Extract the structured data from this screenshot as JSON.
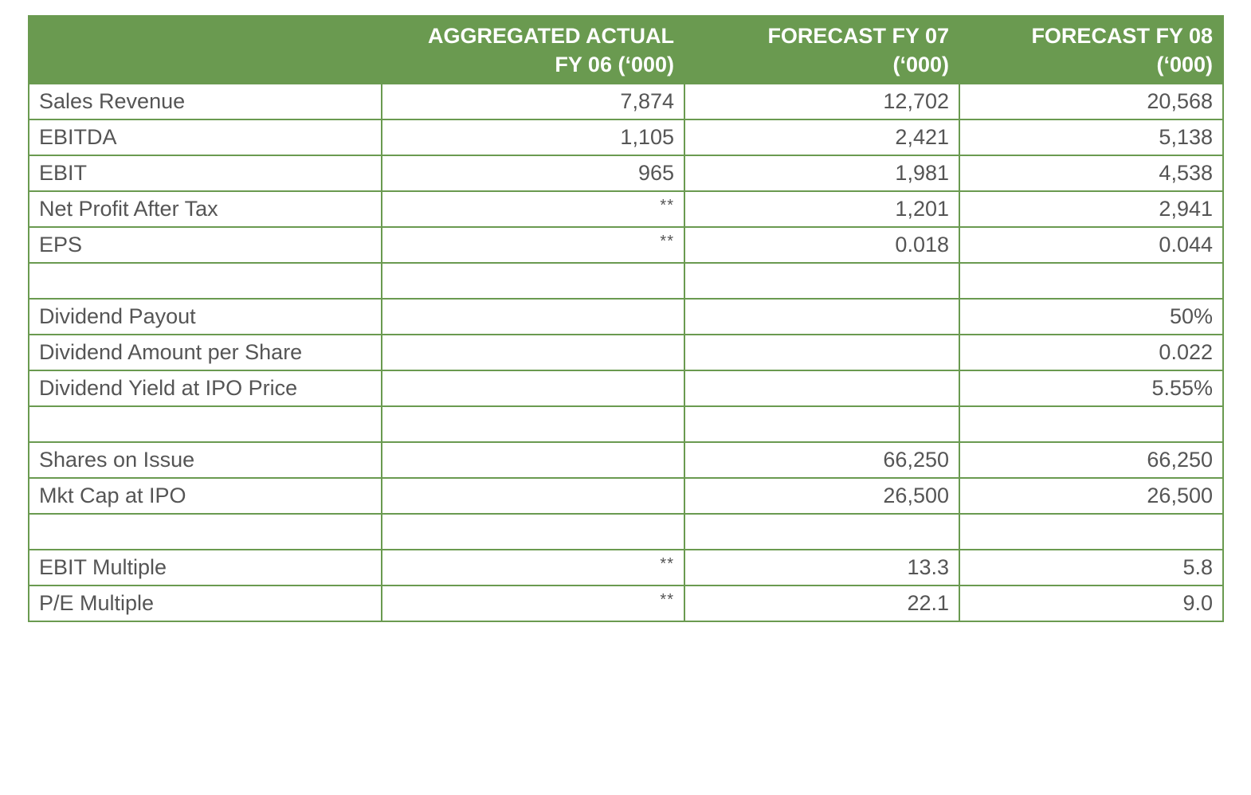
{
  "table": {
    "headers": [
      {
        "line1": "",
        "line2": ""
      },
      {
        "line1": "AGGREGATED ACTUAL",
        "line2": "FY 06 (‘000)"
      },
      {
        "line1": "FORECAST FY 07",
        "line2": "(‘000)"
      },
      {
        "line1": "FORECAST FY 08",
        "line2": "(‘000)"
      }
    ],
    "rows": [
      [
        "Sales Revenue",
        "7,874",
        "12,702",
        "20,568"
      ],
      [
        "EBITDA",
        "1,105",
        "2,421",
        "5,138"
      ],
      [
        "EBIT",
        "965",
        "1,981",
        "4,538"
      ],
      [
        "Net Profit After Tax",
        "**",
        "1,201",
        "2,941"
      ],
      [
        "EPS",
        "**",
        "0.018",
        "0.044"
      ],
      [
        "",
        "",
        "",
        ""
      ],
      [
        "Dividend Payout",
        "",
        "",
        "50%"
      ],
      [
        "Dividend Amount per Share",
        "",
        "",
        "0.022"
      ],
      [
        "Dividend Yield at IPO Price",
        "",
        "",
        "5.55%"
      ],
      [
        "",
        "",
        "",
        ""
      ],
      [
        "Shares on Issue",
        "",
        "66,250",
        "66,250"
      ],
      [
        "Mkt Cap at IPO",
        "",
        "26,500",
        "26,500"
      ],
      [
        "",
        "",
        "",
        ""
      ],
      [
        "EBIT Multiple",
        "**",
        "13.3",
        "5.8"
      ],
      [
        "P/E Multiple",
        "**",
        "22.1",
        "9.0"
      ]
    ]
  },
  "colors": {
    "header_bg": "#6a9a50",
    "border": "#6a9a50",
    "text": "#555555"
  }
}
